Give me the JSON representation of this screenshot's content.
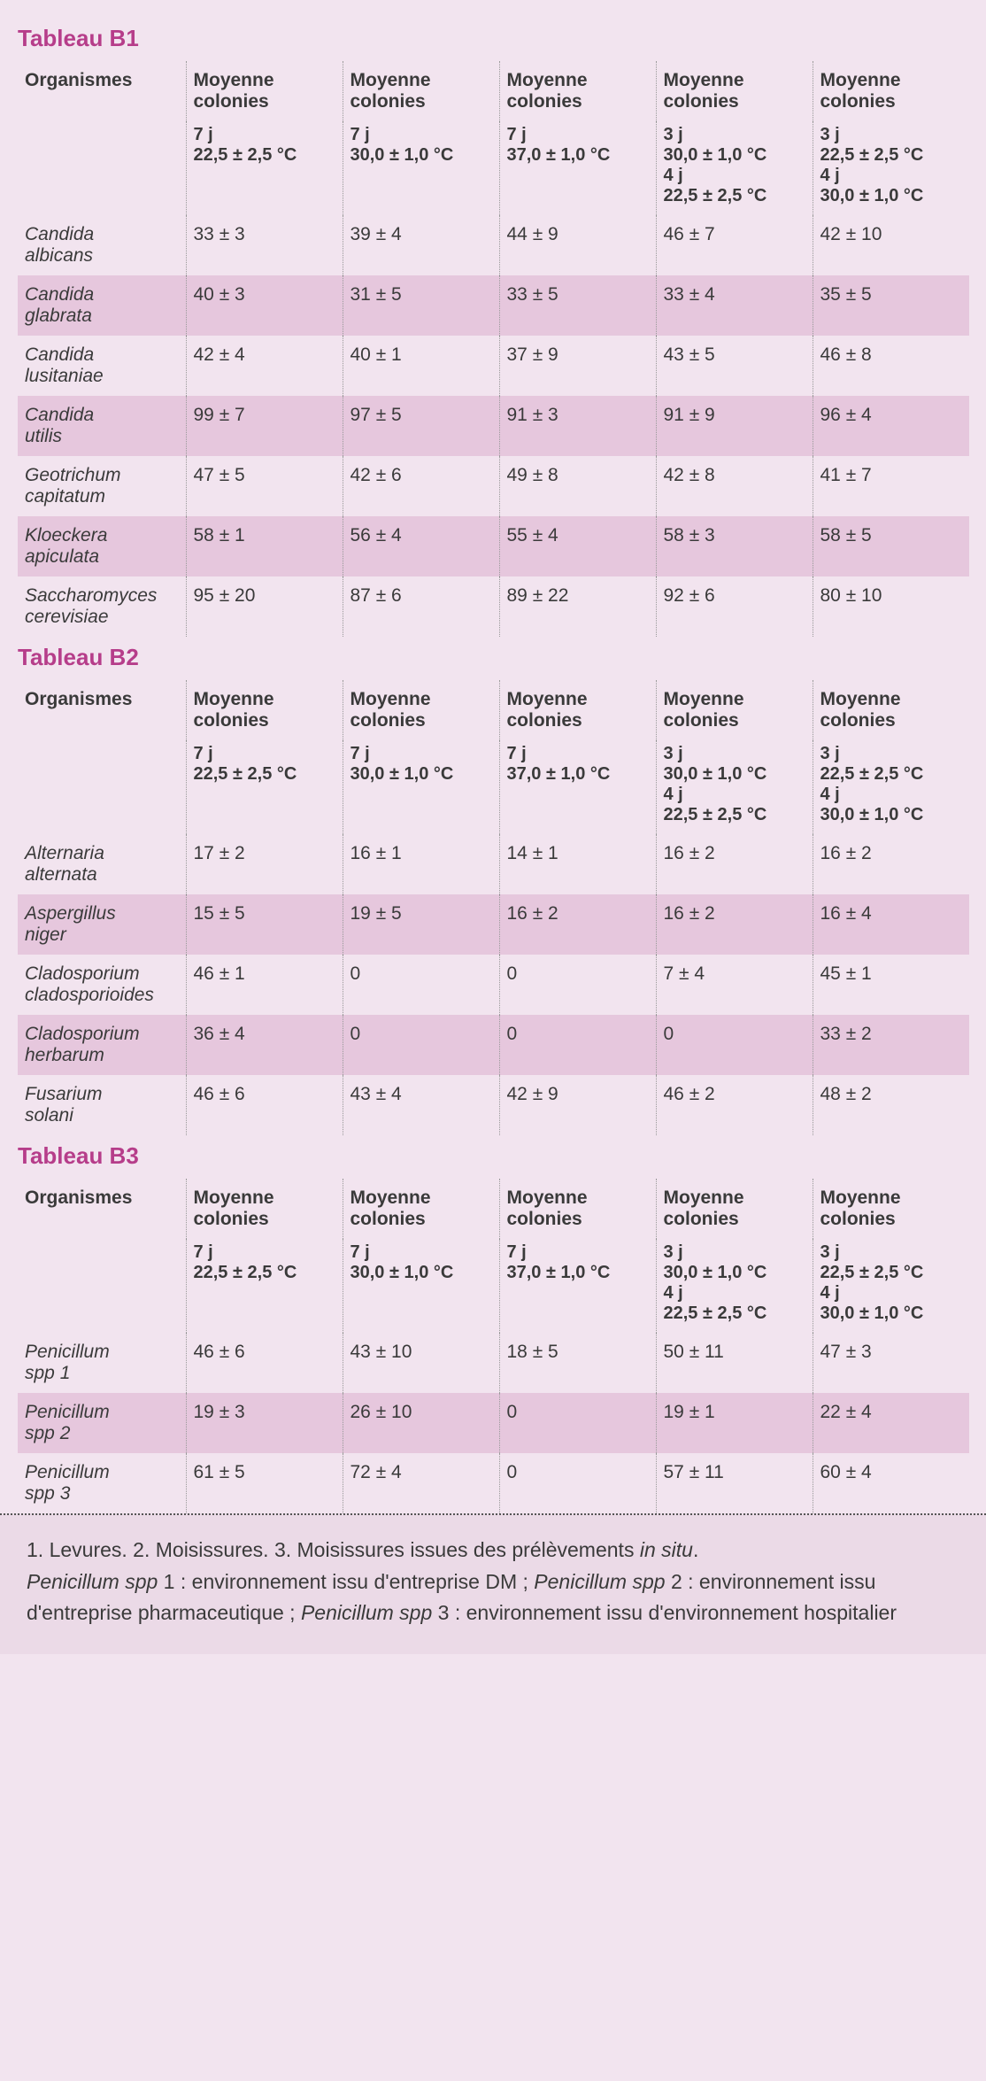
{
  "colors": {
    "title": "#b63d8a",
    "row_even": "#f2e4ef",
    "row_odd": "#e6c7dd",
    "footnote_bg": "#ebdae7",
    "border": "#999999",
    "text": "#3a3a3a"
  },
  "column_header_label": "Moyenne colonies",
  "organismes_label": "Organismes",
  "conditions": [
    {
      "line1": "7 j",
      "line2": "22,5 ± 2,5 °C",
      "line3": "",
      "line4": ""
    },
    {
      "line1": "7 j",
      "line2": "30,0 ± 1,0 °C",
      "line3": "",
      "line4": ""
    },
    {
      "line1": "7 j",
      "line2": "37,0 ± 1,0 °C",
      "line3": "",
      "line4": ""
    },
    {
      "line1": "3 j",
      "line2": "30,0 ± 1,0 °C",
      "line3": "4 j",
      "line4": "22,5 ± 2,5 °C"
    },
    {
      "line1": "3 j",
      "line2": "22,5 ± 2,5 °C",
      "line3": "4 j",
      "line4": "30,0 ± 1,0 °C"
    }
  ],
  "tables": [
    {
      "title": "Tableau B1",
      "rows": [
        {
          "org": "Candida albicans",
          "v": [
            "33 ± 3",
            "39 ± 4",
            "44 ± 9",
            "46 ± 7",
            "42 ± 10"
          ]
        },
        {
          "org": "Candida glabrata",
          "v": [
            "40 ± 3",
            "31 ± 5",
            "33 ± 5",
            "33 ± 4",
            "35 ± 5"
          ]
        },
        {
          "org": "Candida lusitaniae",
          "v": [
            "42 ± 4",
            "40 ± 1",
            "37 ± 9",
            "43 ± 5",
            "46 ± 8"
          ]
        },
        {
          "org": "Candida utilis",
          "v": [
            "99 ± 7",
            "97 ± 5",
            "91 ± 3",
            "91 ± 9",
            "96 ± 4"
          ]
        },
        {
          "org": "Geotrichum capitatum",
          "v": [
            "47 ± 5",
            "42 ± 6",
            "49 ± 8",
            "42 ± 8",
            "41 ± 7"
          ]
        },
        {
          "org": "Kloeckera apiculata",
          "v": [
            "58 ± 1",
            "56 ± 4",
            "55 ± 4",
            "58 ± 3",
            "58 ± 5"
          ]
        },
        {
          "org": "Saccharomyces cerevisiae",
          "v": [
            "95 ± 20",
            "87 ± 6",
            "89 ± 22",
            "92 ± 6",
            "80 ± 10"
          ]
        }
      ]
    },
    {
      "title": "Tableau B2",
      "rows": [
        {
          "org": "Alternaria alternata",
          "v": [
            "17 ± 2",
            "16 ± 1",
            "14 ± 1",
            "16 ± 2",
            "16 ± 2"
          ]
        },
        {
          "org": "Aspergillus niger",
          "v": [
            "15 ± 5",
            "19 ± 5",
            "16 ± 2",
            "16 ± 2",
            "16 ± 4"
          ]
        },
        {
          "org": "Cladosporium cladosporioides",
          "v": [
            "46 ± 1",
            "0",
            "0",
            "7 ± 4",
            "45 ± 1"
          ]
        },
        {
          "org": "Cladosporium herbarum",
          "v": [
            "36 ± 4",
            "0",
            "0",
            "0",
            "33 ± 2"
          ]
        },
        {
          "org": "Fusarium solani",
          "v": [
            "46 ± 6",
            "43 ± 4",
            "42 ± 9",
            "46 ± 2",
            "48 ± 2"
          ]
        }
      ]
    },
    {
      "title": "Tableau B3",
      "rows": [
        {
          "org": "Penicillum spp 1",
          "v": [
            "46 ± 6",
            "43 ± 10",
            "18 ± 5",
            "50 ± 11",
            "47 ± 3"
          ]
        },
        {
          "org": "Penicillum spp 2",
          "v": [
            "19 ± 3",
            "26 ± 10",
            "0",
            "19 ± 1",
            "22 ± 4"
          ]
        },
        {
          "org": "Penicillum spp 3",
          "v": [
            "61 ± 5",
            "72 ± 4",
            "0",
            "57 ± 11",
            "60 ± 4"
          ]
        }
      ]
    }
  ],
  "footnote": {
    "line1_a": "1. Levures. 2. Moisissures. 3. Moisissures issues des prélèvements ",
    "line1_em": "in situ",
    "line1_b": ".",
    "line2_em": "Penicillum spp",
    "line2_a": " 1 : environnement issu d'entreprise DM ; ",
    "line3_em": "Penicillum spp",
    "line3_a": " 2 : environnement issu d'entreprise pharmaceutique ; ",
    "line4_em": "Penicillum spp",
    "line4_a": " 3 : environnement issu d'environnement hospitalier"
  }
}
